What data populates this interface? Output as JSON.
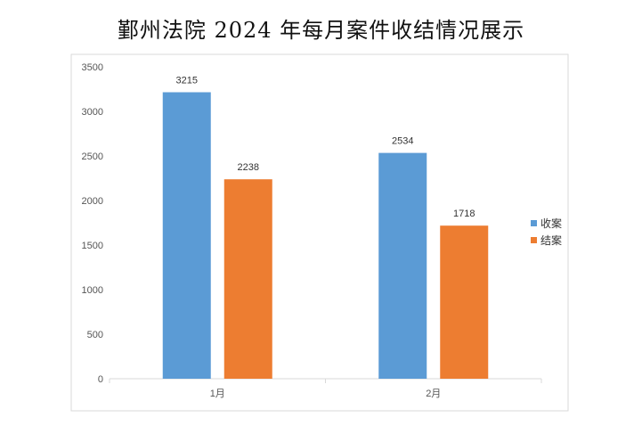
{
  "chart_data": {
    "type": "bar",
    "title": "鄞州法院 2024 年每月案件收结情况展示",
    "categories": [
      "1月",
      "2月"
    ],
    "series": [
      {
        "name": "收案",
        "values": [
          3215,
          2534
        ],
        "color": "#5b9bd5"
      },
      {
        "name": "结案",
        "values": [
          2238,
          1718
        ],
        "color": "#ed7d31"
      }
    ],
    "ylim": [
      0,
      3500
    ],
    "yticks": [
      0,
      500,
      1000,
      1500,
      2000,
      2500,
      3000,
      3500
    ],
    "xlabel": "",
    "ylabel": "",
    "grid": false,
    "legend_position": "right",
    "data_labels": true
  }
}
